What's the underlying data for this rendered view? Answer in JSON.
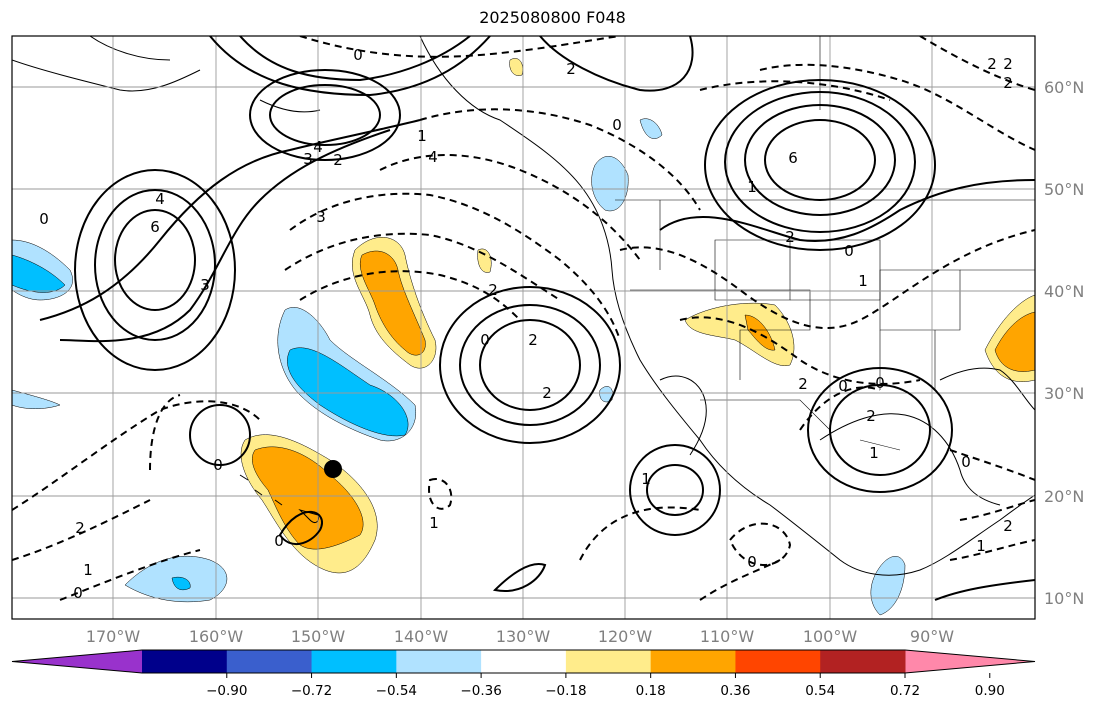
{
  "title": "2025080800 F048",
  "lat_labels": [
    "60°N",
    "50°N",
    "40°N",
    "30°N",
    "20°N",
    "10°N"
  ],
  "lon_labels": [
    "170°W",
    "160°W",
    "150°W",
    "140°W",
    "130°W",
    "120°W",
    "110°W",
    "100°W",
    "90°W"
  ],
  "colorbar": {
    "colors": [
      "#9932cc",
      "#00008b",
      "#3a5fcd",
      "#00bfff",
      "#b0e2ff",
      "#ffffff",
      "#ffec8b",
      "#ffa500",
      "#ff4500",
      "#b22222",
      "#ff88aa"
    ],
    "tick_labels": [
      "−0.90",
      "−0.72",
      "−0.54",
      "−0.36",
      "−0.18",
      "0.18",
      "0.36",
      "0.54",
      "0.72",
      "0.90"
    ]
  },
  "contour_labels": [
    "4",
    "0",
    "3",
    "3",
    "2",
    "4",
    "4",
    "6",
    "2",
    "0",
    "6",
    "2",
    "1",
    "2",
    "1",
    "0",
    "2",
    "2",
    "1",
    "0",
    "0",
    "1",
    "2",
    "2",
    "2",
    "0",
    "0",
    "1",
    "0",
    "0",
    "2",
    "1",
    "0",
    "0",
    "2",
    "3",
    "0",
    "2",
    "1",
    "1",
    "2"
  ],
  "point_marker": "black-dot"
}
